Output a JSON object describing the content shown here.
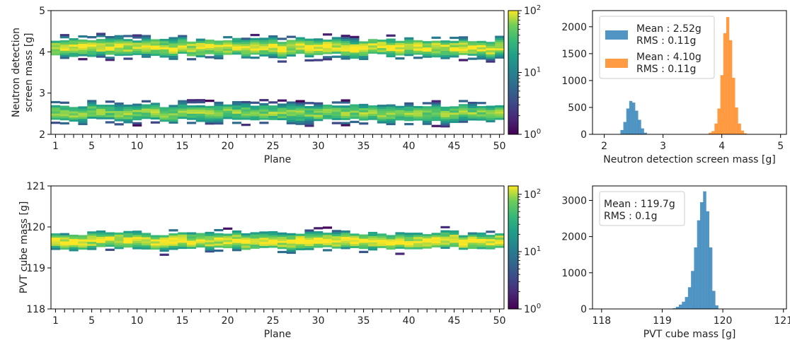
{
  "chart_data": [
    {
      "id": "hm1",
      "type": "heatmap",
      "xlabel": "Plane",
      "ylabel": [
        "Neutron detection",
        "screen mass [g]"
      ],
      "xlim": [
        0.5,
        50.5
      ],
      "xticks": [
        1,
        5,
        10,
        15,
        20,
        25,
        30,
        35,
        40,
        45,
        50
      ],
      "ylim": [
        2,
        5
      ],
      "yticks": [
        "2",
        "3",
        "4",
        "5"
      ],
      "colorbar": {
        "scale": "log",
        "range": [
          1,
          100
        ],
        "ticks": [
          "10^0",
          "10^1",
          "10^2"
        ]
      },
      "bins": [
        {
          "center": 2.52,
          "sigma": 0.11,
          "row_height": 0.05,
          "peak_count": 60
        },
        {
          "center": 4.1,
          "sigma": 0.11,
          "row_height": 0.05,
          "peak_count": 95
        }
      ]
    },
    {
      "id": "h1",
      "type": "bar",
      "xlabel": "Neutron detection screen mass [g]",
      "ylabel": "",
      "xlim": [
        1.8,
        5.1
      ],
      "xticks": [
        "2",
        "3",
        "4",
        "5"
      ],
      "ylim": [
        0,
        2300
      ],
      "yticks": [
        "0",
        "500",
        "1000",
        "1500",
        "2000"
      ],
      "bin_width": 0.05,
      "legend": "top-left",
      "series": [
        {
          "color": "#1f77b4",
          "legend": [
            "Mean : 2.52g",
            "RMS  : 0.11g"
          ],
          "x": [
            2.3,
            2.35,
            2.4,
            2.45,
            2.5,
            2.55,
            2.6,
            2.65,
            2.7
          ],
          "values": [
            80,
            230,
            480,
            620,
            590,
            440,
            270,
            110,
            30
          ]
        },
        {
          "color": "#ff7f0e",
          "legend": [
            "Mean : 4.10g",
            "RMS   : 0.11g"
          ],
          "x": [
            3.8,
            3.85,
            3.9,
            3.95,
            4.0,
            4.05,
            4.1,
            4.15,
            4.2,
            4.25,
            4.3,
            4.35,
            4.4
          ],
          "values": [
            30,
            60,
            200,
            480,
            1100,
            1880,
            2180,
            1750,
            1050,
            500,
            200,
            70,
            20
          ]
        }
      ]
    },
    {
      "id": "hm2",
      "type": "heatmap",
      "xlabel": "Plane",
      "ylabel": [
        "PVT cube mass [g]"
      ],
      "xlim": [
        0.5,
        50.5
      ],
      "xticks": [
        1,
        5,
        10,
        15,
        20,
        25,
        30,
        35,
        40,
        45,
        50
      ],
      "ylim": [
        118,
        121
      ],
      "yticks": [
        "118",
        "119",
        "120",
        "121"
      ],
      "colorbar": {
        "scale": "log",
        "range": [
          1,
          140
        ],
        "ticks": [
          "10^0",
          "10^1",
          "10^2"
        ]
      },
      "bins": [
        {
          "center": 119.66,
          "sigma": 0.1,
          "row_height": 0.05,
          "peak_count": 140
        }
      ]
    },
    {
      "id": "h2",
      "type": "bar",
      "xlabel": "PVT cube mass [g]",
      "ylabel": "",
      "xlim": [
        117.85,
        121.05
      ],
      "xticks": [
        "118",
        "119",
        "120",
        "121"
      ],
      "ylim": [
        0,
        3400
      ],
      "yticks": [
        "0",
        "1000",
        "2000",
        "3000"
      ],
      "bin_width": 0.05,
      "legend": "top-left",
      "series": [
        {
          "color": "#1f77b4",
          "legend": [
            "Mean : 119.7g",
            "RMS   : 0.1g"
          ],
          "x": [
            119.2,
            119.25,
            119.3,
            119.35,
            119.4,
            119.45,
            119.5,
            119.55,
            119.6,
            119.65,
            119.7,
            119.75,
            119.8,
            119.85,
            119.9
          ],
          "values": [
            20,
            60,
            120,
            200,
            330,
            600,
            1050,
            1700,
            2450,
            2950,
            3250,
            2700,
            1700,
            500,
            100
          ]
        }
      ]
    }
  ]
}
